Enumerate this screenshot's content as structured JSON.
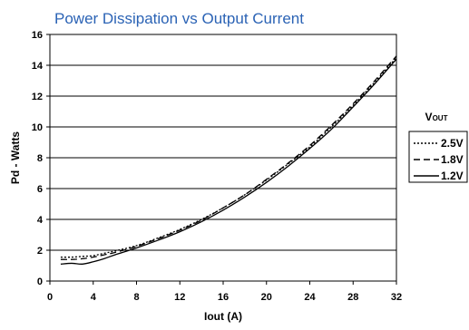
{
  "chart_data": {
    "type": "line",
    "title": "Power Dissipation vs Output Current",
    "xlabel": "Iout  (A)",
    "ylabel": "Pd - Watts",
    "xlim": [
      0,
      32
    ],
    "ylim": [
      0,
      16
    ],
    "x_ticks": [
      "0",
      "4",
      "8",
      "12",
      "16",
      "20",
      "24",
      "28",
      "32"
    ],
    "y_ticks": [
      "0",
      "2",
      "4",
      "6",
      "8",
      "10",
      "12",
      "14",
      "16"
    ],
    "grid": "horizontal",
    "legend": {
      "title_main": "V",
      "title_sub": "OUT",
      "placement": "right"
    },
    "series": [
      {
        "name": "2.5V",
        "dash": "dotted",
        "color": "#000000",
        "points": [
          [
            1,
            1.55
          ],
          [
            2,
            1.55
          ],
          [
            3,
            1.6
          ],
          [
            4,
            1.65
          ],
          [
            5,
            1.8
          ],
          [
            6,
            1.95
          ],
          [
            8,
            2.3
          ],
          [
            10,
            2.8
          ],
          [
            12,
            3.35
          ],
          [
            14,
            4.0
          ],
          [
            16,
            4.75
          ],
          [
            18,
            5.6
          ],
          [
            20,
            6.55
          ],
          [
            22,
            7.6
          ],
          [
            24,
            8.7
          ],
          [
            26,
            10.0
          ],
          [
            28,
            11.4
          ],
          [
            30,
            12.9
          ],
          [
            32,
            14.5
          ]
        ]
      },
      {
        "name": "1.8V",
        "dash": "dashed",
        "color": "#000000",
        "points": [
          [
            1,
            1.4
          ],
          [
            2,
            1.4
          ],
          [
            3,
            1.45
          ],
          [
            4,
            1.55
          ],
          [
            5,
            1.7
          ],
          [
            6,
            1.85
          ],
          [
            8,
            2.25
          ],
          [
            10,
            2.75
          ],
          [
            12,
            3.3
          ],
          [
            14,
            3.95
          ],
          [
            16,
            4.75
          ],
          [
            18,
            5.6
          ],
          [
            20,
            6.6
          ],
          [
            22,
            7.65
          ],
          [
            24,
            8.8
          ],
          [
            26,
            10.1
          ],
          [
            28,
            11.5
          ],
          [
            30,
            13.0
          ],
          [
            32,
            14.6
          ]
        ]
      },
      {
        "name": "1.2V",
        "dash": "solid",
        "color": "#000000",
        "points": [
          [
            1,
            1.1
          ],
          [
            2,
            1.15
          ],
          [
            3,
            1.1
          ],
          [
            4,
            1.25
          ],
          [
            5,
            1.45
          ],
          [
            6,
            1.7
          ],
          [
            8,
            2.15
          ],
          [
            10,
            2.65
          ],
          [
            12,
            3.2
          ],
          [
            14,
            3.85
          ],
          [
            16,
            4.6
          ],
          [
            18,
            5.45
          ],
          [
            20,
            6.4
          ],
          [
            22,
            7.45
          ],
          [
            24,
            8.6
          ],
          [
            26,
            9.85
          ],
          [
            28,
            11.3
          ],
          [
            30,
            12.8
          ],
          [
            32,
            14.4
          ]
        ]
      }
    ]
  }
}
